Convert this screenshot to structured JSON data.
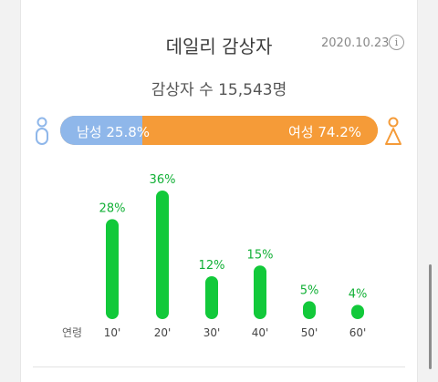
{
  "header": {
    "title": "데일리 감상자",
    "date": "2020.10.23",
    "info_icon": "info-icon",
    "info_glyph": "i"
  },
  "summary": {
    "total_viewers": "감상자 수 15,543명"
  },
  "gender": {
    "male_label": "남성 25.8%",
    "female_label": "여성 74.2%",
    "male_share": 25.8,
    "female_share": 74.2,
    "male_color": "#8fb7ea",
    "female_color": "#f59b38",
    "male_icon": "male-person-icon",
    "female_icon": "female-person-icon"
  },
  "chart_data": {
    "type": "bar",
    "xlabel": "연령",
    "categories": [
      "10'",
      "20'",
      "30'",
      "40'",
      "50'",
      "60'"
    ],
    "values": [
      28,
      36,
      12,
      15,
      5,
      4
    ],
    "value_labels": [
      "28%",
      "36%",
      "12%",
      "15%",
      "5%",
      "4%"
    ],
    "ylim": [
      0,
      36
    ],
    "bar_color": "#12c93a",
    "label_color": "#12b036",
    "grid": false
  }
}
